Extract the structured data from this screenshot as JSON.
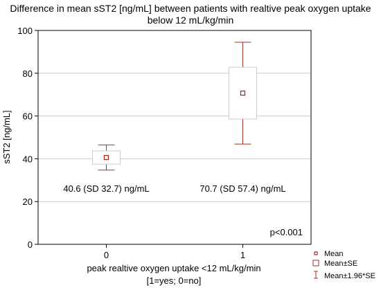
{
  "chart_data": {
    "type": "box",
    "title_lines": [
      "Difference in mean sST2 [ng/mL] between patients with realtive peak oxygen uptake",
      "below 12 mL/kg/min"
    ],
    "ylabel": "sST2 [ng/mL]",
    "xlabel_lines": [
      "peak realtive oxygen uptake <12 mL/kg/min",
      "[1=yes; 0=no]"
    ],
    "ylim": [
      0,
      100
    ],
    "yticks": [
      0,
      20,
      40,
      60,
      80,
      100
    ],
    "grid": true,
    "categories": [
      "0",
      "1"
    ],
    "groups": [
      {
        "category": "0",
        "mean": 40.6,
        "se_low": 37.5,
        "se_high": 43.7,
        "ci_low": 34.7,
        "ci_high": 46.5,
        "label": "40.6 (SD 32.7) ng/mL"
      },
      {
        "category": "1",
        "mean": 70.7,
        "se_low": 58.6,
        "se_high": 82.8,
        "ci_low": 46.9,
        "ci_high": 94.5,
        "label": "70.7 (SD 57.4) ng/mL"
      }
    ],
    "annotation": "p<0.001",
    "legend": {
      "placement": "bottom-right",
      "items": [
        {
          "symbol": "mean",
          "label": "Mean"
        },
        {
          "symbol": "box",
          "label": "Mean±SE"
        },
        {
          "symbol": "whisker",
          "label": "Mean±1.96*SE"
        }
      ]
    },
    "colors": {
      "marker": "#a0302a",
      "grid": "#cccccc",
      "axis": "#000000"
    }
  }
}
